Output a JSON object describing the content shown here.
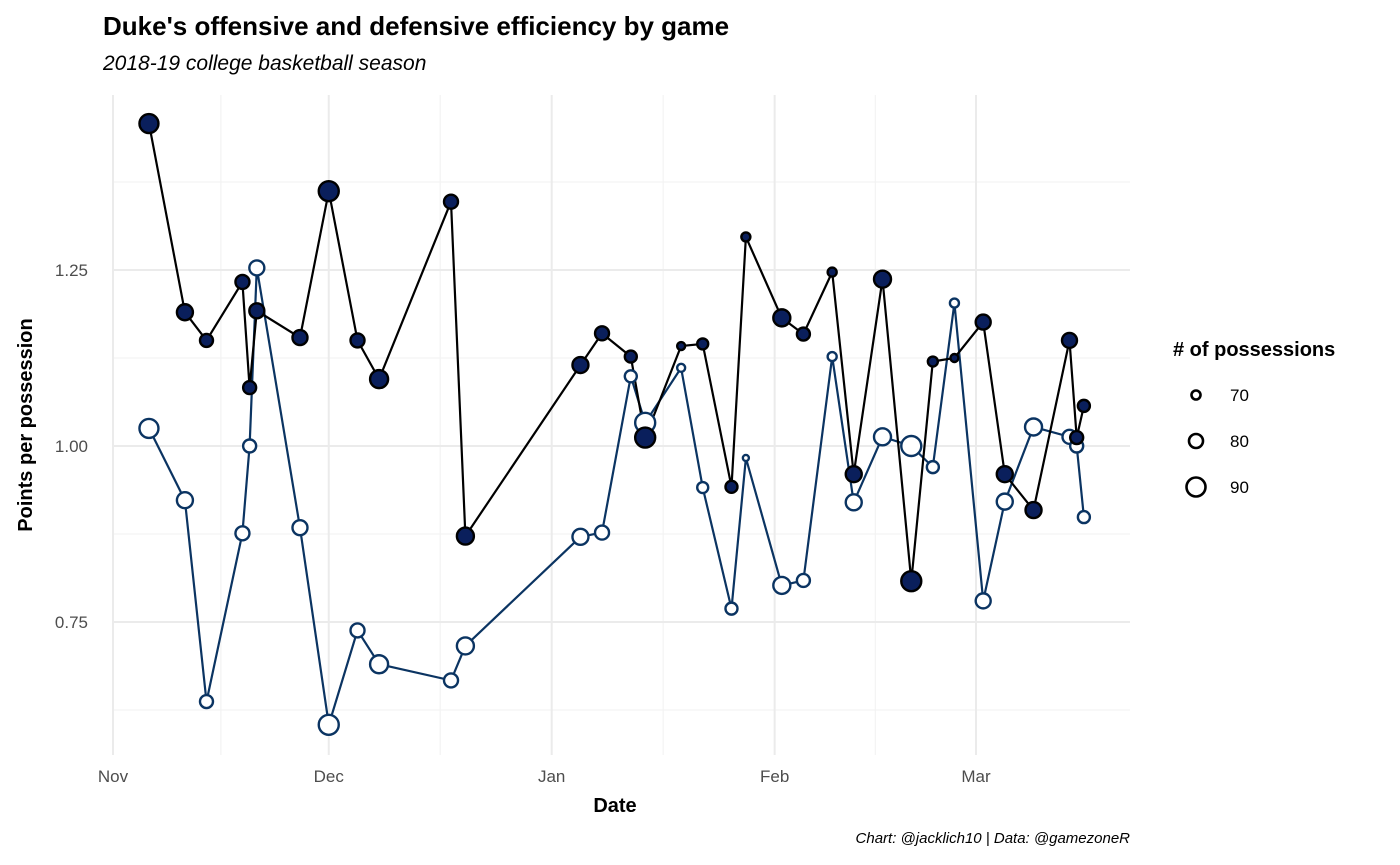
{
  "chart_data": {
    "type": "line",
    "title": "Duke's offensive and defensive efficiency by game",
    "subtitle": "2018-19 college basketball season",
    "caption": "Chart: @jacklich10 | Data: @gamezoneR",
    "xlabel": "Date",
    "ylabel": "Points per possession",
    "xlim": [
      "2018-10-30",
      "2019-03-25"
    ],
    "ylim": [
      0.58,
      1.465
    ],
    "x_ticks": [
      {
        "date": "2018-11-01",
        "label": "Nov"
      },
      {
        "date": "2018-12-01",
        "label": "Dec"
      },
      {
        "date": "2019-01-01",
        "label": "Jan"
      },
      {
        "date": "2019-02-01",
        "label": "Feb"
      },
      {
        "date": "2019-03-01",
        "label": "Mar"
      }
    ],
    "y_ticks": [
      0.75,
      1.0,
      1.25
    ],
    "grid": true,
    "legend": {
      "title": "# of possessions",
      "placement": "right",
      "entries": [
        70,
        80,
        90
      ]
    },
    "series": [
      {
        "key": "offense",
        "color": "#000000",
        "marker_fill": "#0a1f5c",
        "points": [
          {
            "date": "2018-11-06",
            "y": 1.458,
            "poss": 90
          },
          {
            "date": "2018-11-11",
            "y": 1.19,
            "poss": 84
          },
          {
            "date": "2018-11-14",
            "y": 1.15,
            "poss": 78
          },
          {
            "date": "2018-11-19",
            "y": 1.233,
            "poss": 80
          },
          {
            "date": "2018-11-20",
            "y": 1.083,
            "poss": 78
          },
          {
            "date": "2018-11-21",
            "y": 1.192,
            "poss": 82
          },
          {
            "date": "2018-11-27",
            "y": 1.154,
            "poss": 82
          },
          {
            "date": "2018-12-01",
            "y": 1.362,
            "poss": 92
          },
          {
            "date": "2018-12-05",
            "y": 1.15,
            "poss": 80
          },
          {
            "date": "2018-12-08",
            "y": 1.095,
            "poss": 88
          },
          {
            "date": "2018-12-18",
            "y": 1.347,
            "poss": 80
          },
          {
            "date": "2018-12-20",
            "y": 0.872,
            "poss": 86
          },
          {
            "date": "2019-01-05",
            "y": 1.115,
            "poss": 84
          },
          {
            "date": "2019-01-08",
            "y": 1.16,
            "poss": 80
          },
          {
            "date": "2019-01-12",
            "y": 1.127,
            "poss": 76
          },
          {
            "date": "2019-01-14",
            "y": 1.012,
            "poss": 92
          },
          {
            "date": "2019-01-19",
            "y": 1.142,
            "poss": 68
          },
          {
            "date": "2019-01-22",
            "y": 1.145,
            "poss": 74
          },
          {
            "date": "2019-01-26",
            "y": 0.942,
            "poss": 76
          },
          {
            "date": "2019-01-28",
            "y": 1.297,
            "poss": 70
          },
          {
            "date": "2019-02-02",
            "y": 1.182,
            "poss": 86
          },
          {
            "date": "2019-02-05",
            "y": 1.159,
            "poss": 78
          },
          {
            "date": "2019-02-09",
            "y": 1.247,
            "poss": 70
          },
          {
            "date": "2019-02-12",
            "y": 0.96,
            "poss": 84
          },
          {
            "date": "2019-02-16",
            "y": 1.237,
            "poss": 86
          },
          {
            "date": "2019-02-20",
            "y": 0.808,
            "poss": 92
          },
          {
            "date": "2019-02-23",
            "y": 1.12,
            "poss": 72
          },
          {
            "date": "2019-02-26",
            "y": 1.125,
            "poss": 68
          },
          {
            "date": "2019-03-02",
            "y": 1.176,
            "poss": 82
          },
          {
            "date": "2019-03-05",
            "y": 0.96,
            "poss": 84
          },
          {
            "date": "2019-03-09",
            "y": 0.909,
            "poss": 84
          },
          {
            "date": "2019-03-14",
            "y": 1.15,
            "poss": 82
          },
          {
            "date": "2019-03-15",
            "y": 1.012,
            "poss": 78
          },
          {
            "date": "2019-03-16",
            "y": 1.057,
            "poss": 76
          }
        ]
      },
      {
        "key": "defense",
        "color": "#0b3462",
        "marker_fill": "#ffffff",
        "points": [
          {
            "date": "2018-11-06",
            "y": 1.025,
            "poss": 90
          },
          {
            "date": "2018-11-11",
            "y": 0.923,
            "poss": 84
          },
          {
            "date": "2018-11-14",
            "y": 0.637,
            "poss": 78
          },
          {
            "date": "2018-11-19",
            "y": 0.876,
            "poss": 80
          },
          {
            "date": "2018-11-20",
            "y": 1.0,
            "poss": 78
          },
          {
            "date": "2018-11-21",
            "y": 1.253,
            "poss": 82
          },
          {
            "date": "2018-11-27",
            "y": 0.884,
            "poss": 82
          },
          {
            "date": "2018-12-01",
            "y": 0.604,
            "poss": 92
          },
          {
            "date": "2018-12-05",
            "y": 0.738,
            "poss": 80
          },
          {
            "date": "2018-12-08",
            "y": 0.69,
            "poss": 88
          },
          {
            "date": "2018-12-18",
            "y": 0.667,
            "poss": 80
          },
          {
            "date": "2018-12-20",
            "y": 0.716,
            "poss": 86
          },
          {
            "date": "2019-01-05",
            "y": 0.871,
            "poss": 84
          },
          {
            "date": "2019-01-08",
            "y": 0.877,
            "poss": 80
          },
          {
            "date": "2019-01-12",
            "y": 1.099,
            "poss": 76
          },
          {
            "date": "2019-01-14",
            "y": 1.033,
            "poss": 92
          },
          {
            "date": "2019-01-19",
            "y": 1.111,
            "poss": 68
          },
          {
            "date": "2019-01-22",
            "y": 0.941,
            "poss": 74
          },
          {
            "date": "2019-01-26",
            "y": 0.769,
            "poss": 76
          },
          {
            "date": "2019-01-28",
            "y": 0.983,
            "poss": 64
          },
          {
            "date": "2019-02-02",
            "y": 0.802,
            "poss": 86
          },
          {
            "date": "2019-02-05",
            "y": 0.809,
            "poss": 78
          },
          {
            "date": "2019-02-09",
            "y": 1.127,
            "poss": 70
          },
          {
            "date": "2019-02-12",
            "y": 0.92,
            "poss": 84
          },
          {
            "date": "2019-02-16",
            "y": 1.013,
            "poss": 86
          },
          {
            "date": "2019-02-20",
            "y": 1.0,
            "poss": 92
          },
          {
            "date": "2019-02-23",
            "y": 0.97,
            "poss": 76
          },
          {
            "date": "2019-02-26",
            "y": 1.203,
            "poss": 70
          },
          {
            "date": "2019-03-02",
            "y": 0.78,
            "poss": 82
          },
          {
            "date": "2019-03-05",
            "y": 0.921,
            "poss": 84
          },
          {
            "date": "2019-03-09",
            "y": 1.027,
            "poss": 86
          },
          {
            "date": "2019-03-14",
            "y": 1.013,
            "poss": 80
          },
          {
            "date": "2019-03-15",
            "y": 1.0,
            "poss": 78
          },
          {
            "date": "2019-03-16",
            "y": 0.899,
            "poss": 76
          }
        ]
      }
    ]
  }
}
